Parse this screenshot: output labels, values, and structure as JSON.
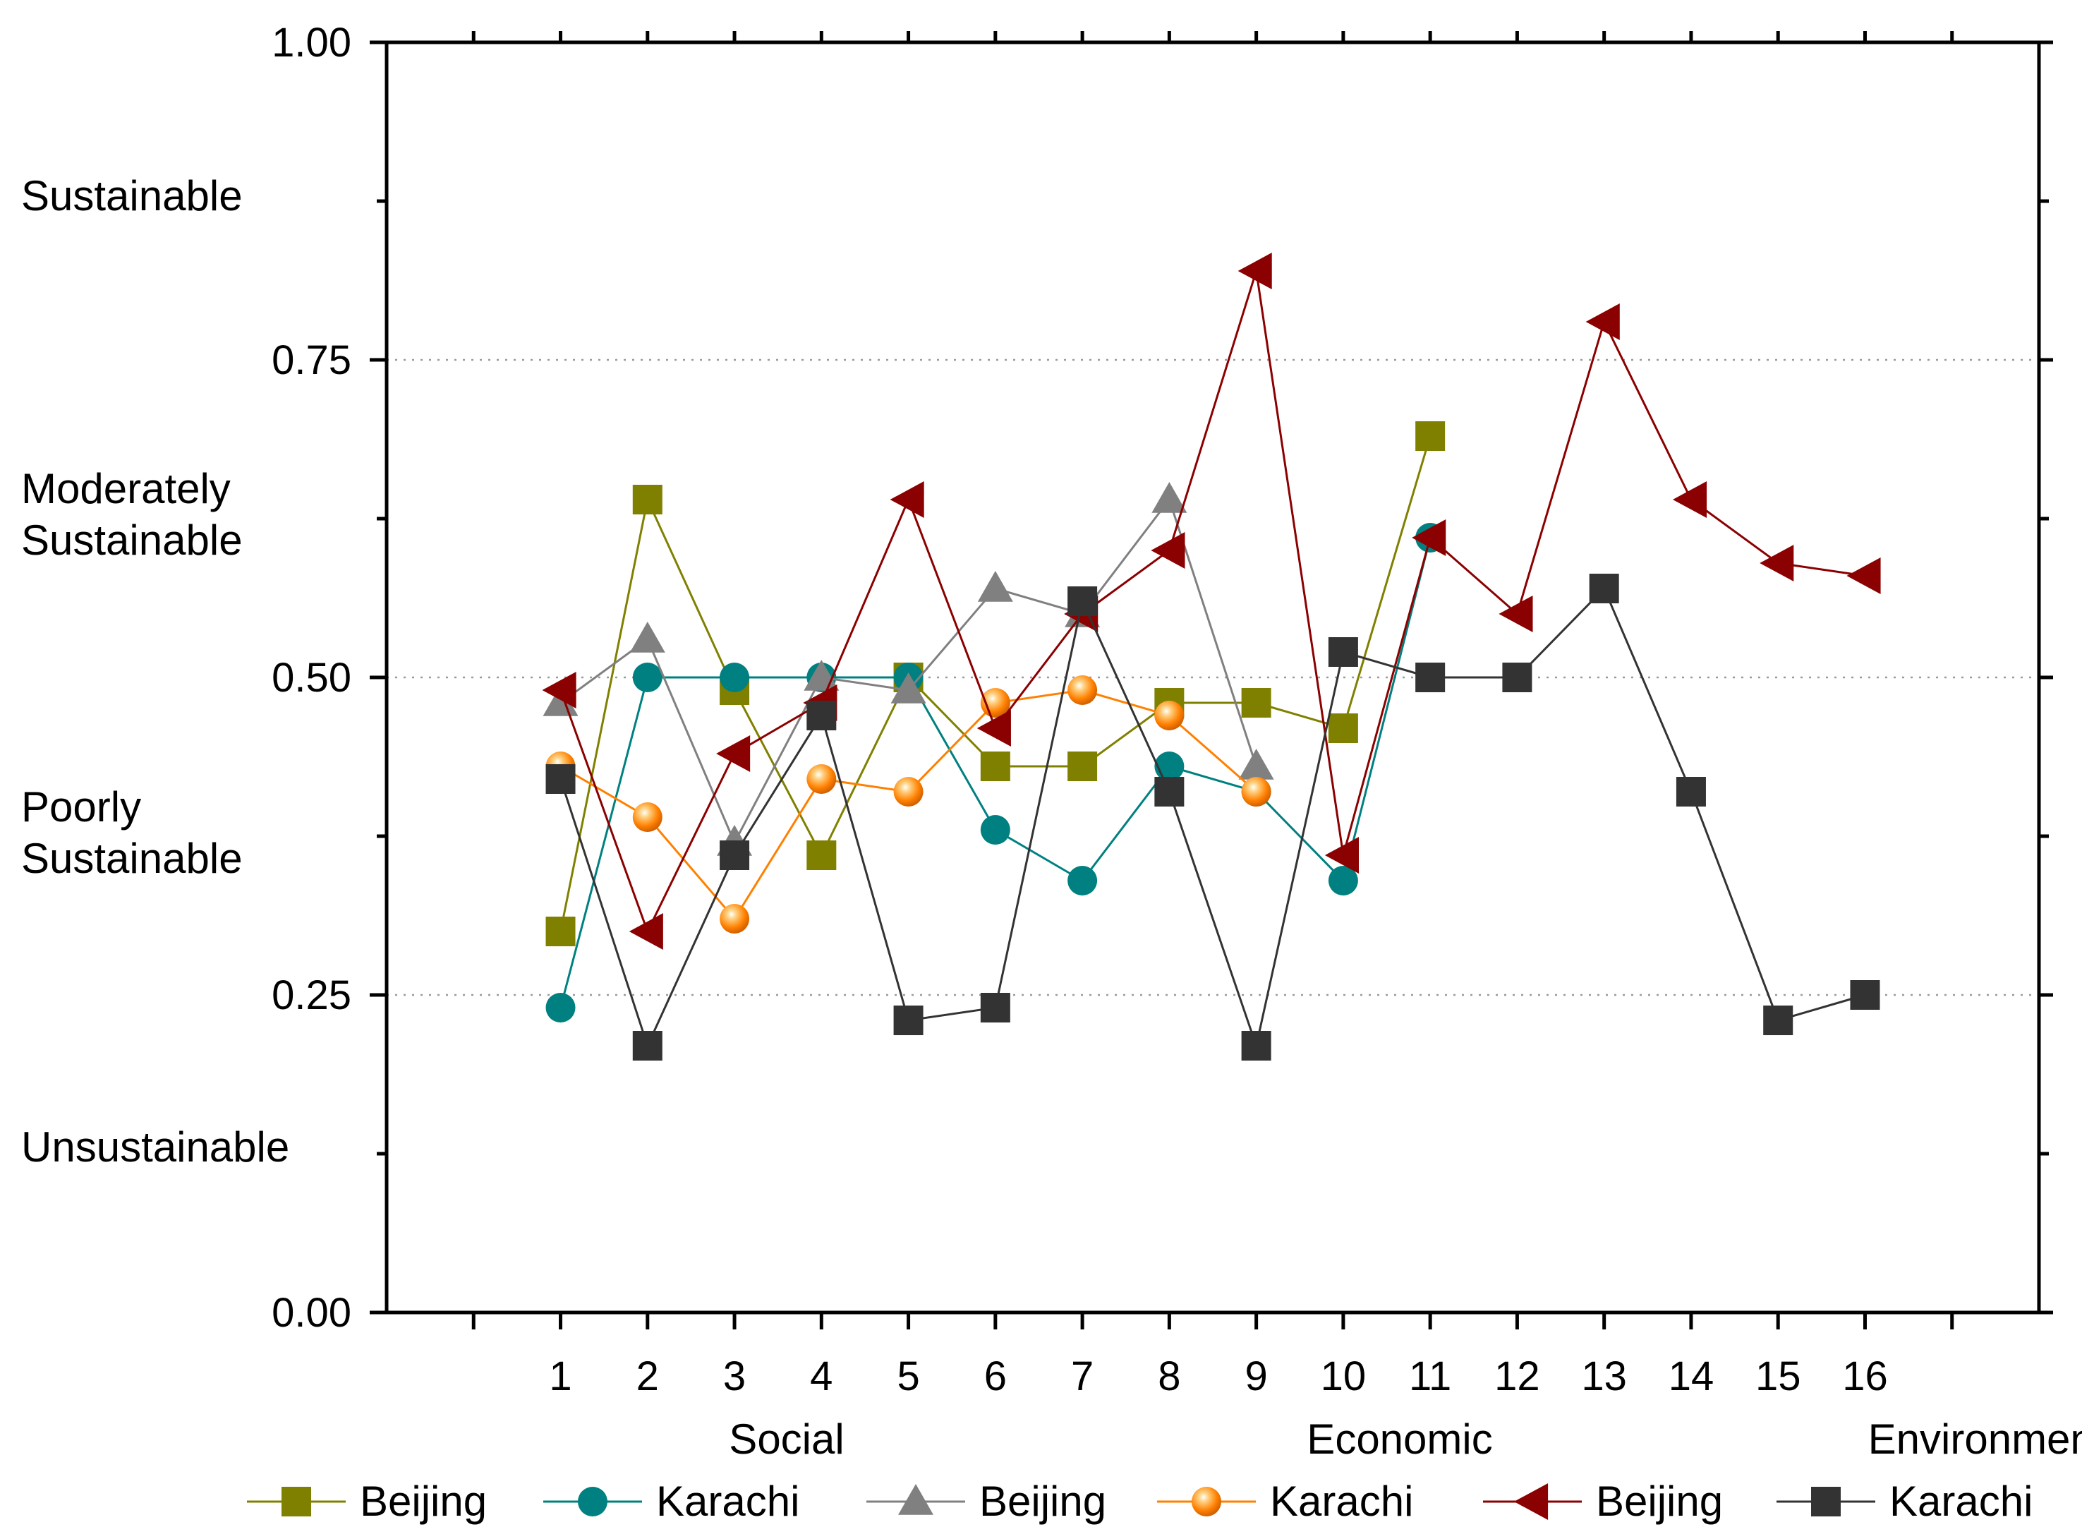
{
  "chart_data": {
    "type": "line",
    "title": "",
    "xlabel": "",
    "ylabel": "",
    "ylim": [
      0,
      1
    ],
    "xlim": [
      -1,
      18
    ],
    "grid_lines": [
      0.25,
      0.5,
      0.75
    ],
    "y_ticks": [
      "0.00",
      "0.25",
      "0.50",
      "0.75",
      "1.00"
    ],
    "x_ticks": [
      "1",
      "2",
      "3",
      "4",
      "5",
      "6",
      "7",
      "8",
      "9",
      "10",
      "11",
      "12",
      "13",
      "14",
      "15",
      "16"
    ],
    "categories": [
      "Social",
      "Economic",
      "Environment"
    ],
    "zones": [
      {
        "text": "Sustainable"
      },
      {
        "text": "Moderately"
      },
      {
        "text": "Sustainable"
      },
      {
        "text": "Poorly"
      },
      {
        "text": "Sustainable"
      },
      {
        "text": "Unsustainable"
      }
    ],
    "series": [
      {
        "name": "Beijing",
        "group": "Social",
        "marker": "square",
        "color": "#808000",
        "x": [
          1,
          2,
          3,
          4,
          5,
          6,
          7,
          8,
          9,
          10,
          11
        ],
        "values": [
          0.3,
          0.64,
          0.49,
          0.36,
          0.5,
          0.43,
          0.43,
          0.48,
          0.48,
          0.46,
          0.69
        ]
      },
      {
        "name": "Karachi",
        "group": "Social",
        "marker": "circle",
        "color": "#008080",
        "x": [
          1,
          2,
          3,
          4,
          5,
          6,
          7,
          8,
          9,
          10,
          11
        ],
        "values": [
          0.24,
          0.5,
          0.5,
          0.5,
          0.5,
          0.38,
          0.34,
          0.43,
          0.41,
          0.34,
          0.61
        ]
      },
      {
        "name": "Beijing",
        "group": "Economic",
        "marker": "triangle-up",
        "color": "#808080",
        "x": [
          1,
          2,
          3,
          4,
          5,
          6,
          7,
          8,
          9
        ],
        "values": [
          0.48,
          0.53,
          0.37,
          0.5,
          0.49,
          0.57,
          0.55,
          0.64,
          0.43
        ]
      },
      {
        "name": "Karachi",
        "group": "Economic",
        "marker": "sphere",
        "color": "#FF8000",
        "x": [
          1,
          2,
          3,
          4,
          5,
          6,
          7,
          8,
          9
        ],
        "values": [
          0.43,
          0.39,
          0.31,
          0.42,
          0.41,
          0.48,
          0.49,
          0.47,
          0.41
        ]
      },
      {
        "name": "Beijing",
        "group": "Environment",
        "marker": "triangle-left",
        "color": "#8B0000",
        "x": [
          1,
          2,
          3,
          4,
          5,
          6,
          7,
          8,
          9,
          10,
          11,
          12,
          13,
          14,
          15,
          16
        ],
        "values": [
          0.49,
          0.3,
          0.44,
          0.48,
          0.64,
          0.46,
          0.55,
          0.6,
          0.82,
          0.36,
          0.61,
          0.55,
          0.78,
          0.64,
          0.59,
          0.58
        ]
      },
      {
        "name": "Karachi",
        "group": "Environment",
        "marker": "square",
        "color": "#333333",
        "x": [
          1,
          2,
          3,
          4,
          5,
          6,
          7,
          8,
          9,
          10,
          11,
          12,
          13,
          14,
          15,
          16
        ],
        "values": [
          0.42,
          0.21,
          0.36,
          0.47,
          0.23,
          0.24,
          0.56,
          0.41,
          0.21,
          0.52,
          0.5,
          0.5,
          0.57,
          0.41,
          0.23,
          0.25
        ]
      }
    ],
    "legend": [
      "Beijing",
      "Karachi",
      "Beijing",
      "Karachi",
      "Beijing",
      "Karachi"
    ]
  }
}
